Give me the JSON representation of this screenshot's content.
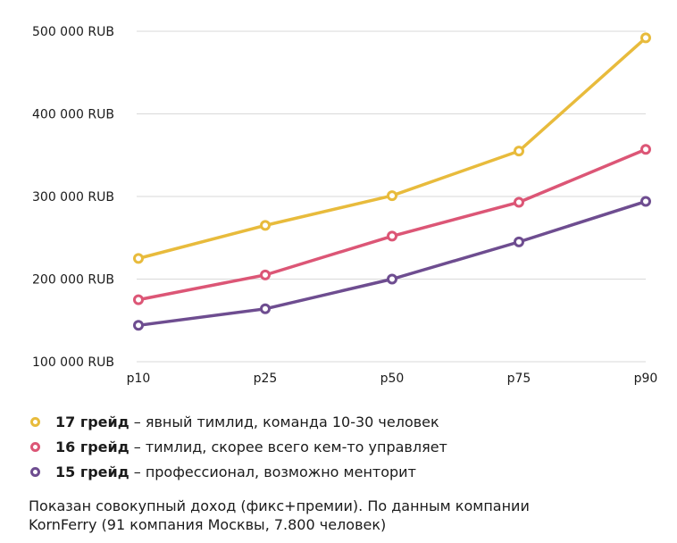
{
  "chart_data": {
    "type": "line",
    "categories": [
      "p10",
      "p25",
      "p50",
      "p75",
      "p90"
    ],
    "y_ticks": [
      "100 000 RUB",
      "200 000 RUB",
      "300 000 RUB",
      "400 000 RUB",
      "500 000 RUB"
    ],
    "ylim": [
      100000,
      500000
    ],
    "grid": true,
    "series": [
      {
        "name": "17 грейд",
        "color": "#e8bb3c",
        "values": [
          225000,
          265000,
          301000,
          355000,
          492000
        ]
      },
      {
        "name": "16 грейд",
        "color": "#dc5676",
        "values": [
          175000,
          205000,
          252000,
          293000,
          357000
        ]
      },
      {
        "name": "15 грейд",
        "color": "#6e4d90",
        "values": [
          144000,
          164000,
          200000,
          245000,
          294000
        ]
      }
    ]
  },
  "legend": [
    {
      "grade": "17 грейд",
      "desc": " – явный тимлид, команда 10-30 человек",
      "color": "#e8bb3c"
    },
    {
      "grade": "16 грейд",
      "desc": " – тимлид, скорее всего кем-то управляет",
      "color": "#dc5676"
    },
    {
      "grade": "15 грейд",
      "desc": " – профессионал, возможно менторит",
      "color": "#6e4d90"
    }
  ],
  "footnote": {
    "line1": "Показан совокупный доход (фикс+премии). По данным компании",
    "line2": "KornFerry (91 компания Москвы, 7.800 человек)"
  }
}
